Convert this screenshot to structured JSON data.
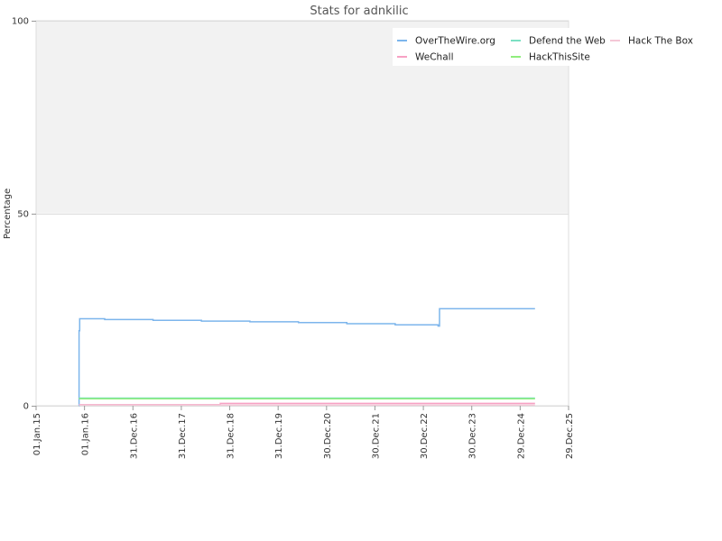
{
  "chart_data": {
    "type": "line",
    "title": "Stats for adnkilic",
    "xlabel": "",
    "ylabel": "Percentage",
    "ylim": [
      0,
      100
    ],
    "yticks": [
      0,
      50,
      100
    ],
    "xlim": [
      "2015-01-01",
      "2025-12-29"
    ],
    "xticks": [
      "01.Jan.15",
      "01.Jan.16",
      "31.Dec.16",
      "31.Dec.17",
      "31.Dec.18",
      "31.Dec.19",
      "30.Dec.20",
      "30.Dec.21",
      "30.Dec.22",
      "30.Dec.23",
      "29.Dec.24",
      "29.Dec.25"
    ],
    "xtick_dates": [
      "2015-01-01",
      "2016-01-01",
      "2016-12-31",
      "2017-12-31",
      "2018-12-31",
      "2019-12-31",
      "2020-12-30",
      "2021-12-30",
      "2022-12-30",
      "2023-12-30",
      "2024-12-29",
      "2025-12-29"
    ],
    "grid": true,
    "legend_position": "top-right",
    "step": true,
    "series": [
      {
        "name": "OverTheWire.org",
        "color": "#7cb5ec",
        "points": [
          [
            "2015-11-20",
            0
          ],
          [
            "2015-11-21",
            19.5
          ],
          [
            "2015-11-26",
            22.6
          ],
          [
            "2016-06-01",
            22.4
          ],
          [
            "2017-06-01",
            22.2
          ],
          [
            "2018-06-01",
            22.0
          ],
          [
            "2019-06-01",
            21.8
          ],
          [
            "2020-06-01",
            21.6
          ],
          [
            "2021-06-01",
            21.3
          ],
          [
            "2022-06-01",
            21.0
          ],
          [
            "2023-04-20",
            20.7
          ],
          [
            "2023-05-01",
            25.2
          ],
          [
            "2025-04-20",
            25.2
          ]
        ]
      },
      {
        "name": "WeChall",
        "color": "#f7a1c4",
        "points": [
          [
            "2015-11-20",
            0.3
          ],
          [
            "2018-10-20",
            0.3
          ],
          [
            "2018-10-21",
            0.6
          ],
          [
            "2025-04-20",
            0.6
          ]
        ]
      },
      {
        "name": "Defend the Web",
        "color": "#7ce0c3",
        "points": [
          [
            "2015-11-20",
            2.0
          ],
          [
            "2025-04-20",
            2.0
          ]
        ]
      },
      {
        "name": "HackThisSite",
        "color": "#90ed7d",
        "points": [
          [
            "2015-11-20",
            1.8
          ],
          [
            "2025-04-20",
            1.8
          ]
        ]
      },
      {
        "name": "Hack The Box",
        "color": "#f4c7d6",
        "points": [
          [
            "2015-11-20",
            0.2
          ],
          [
            "2025-04-20",
            0.2
          ]
        ]
      }
    ]
  }
}
